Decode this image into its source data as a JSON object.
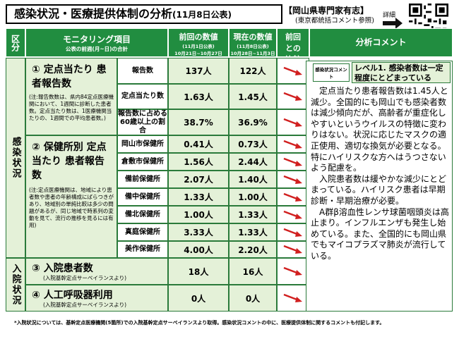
{
  "header": {
    "title": "感染状況・医療提供体制の分析",
    "title_date": "(11月8日公表)",
    "source_line1": "【岡山県専門家有志】",
    "source_line2": "(東京都統括コメント参照)",
    "detail_label": "詳細"
  },
  "table": {
    "col_headers": {
      "section": "区分",
      "item": "モニタリング項目",
      "item_sub": "公表の前週(月~日)の合計",
      "prev": "前回の数値",
      "prev_sub1": "(11月1日公表)",
      "prev_sub2": "10月21日~10月27日",
      "curr": "現在の数値",
      "curr_sub1": "(11月8日公表)",
      "curr_sub2": "10月28日~11月3日",
      "compare": "前回との比較",
      "comment": "分析コメント"
    },
    "sections": {
      "infection": "感染状況",
      "hospital": "入院状況"
    },
    "items": {
      "item1_title": "① 定点当たり 患者報告数",
      "item1_note": "(注:報告数数は、県内84定点医療機関において、1週間に診断した患者数。定点当たり数は、1医療機関当たりの、1週間での平均患者数。)",
      "item2_title": "② 保健所別 定点当たり 患者報告数",
      "item2_note": "(注:定点医療機関は、地域により患者数や患者の年齢構成にばらつきがあり、地域別の単純比較は多少の問題があるが、同じ地域で時系列の変動を見て、流行の推移を見るには有用)",
      "item3_title": "③ 入院患者数",
      "item3_note": "(入院基幹定点サーベイランスより)",
      "item4_title": "④ 人工呼吸器利用",
      "item4_note": "(入院基幹定点サーベイランスより)"
    },
    "rows": [
      {
        "label": "報告数",
        "prev": "137人",
        "curr": "122人"
      },
      {
        "label": "定点当たり数",
        "prev": "1.63人",
        "curr": "1.45人"
      },
      {
        "label": "報告数に占める60歳以上の割合",
        "prev": "38.7%",
        "curr": "36.9%"
      },
      {
        "label": "岡山市保健所",
        "prev": "0.41人",
        "curr": "0.73人"
      },
      {
        "label": "倉敷市保健所",
        "prev": "1.56人",
        "curr": "2.44人"
      },
      {
        "label": "備前保健所",
        "prev": "2.07人",
        "curr": "1.40人"
      },
      {
        "label": "備中保健所",
        "prev": "1.33人",
        "curr": "1.00人"
      },
      {
        "label": "備北保健所",
        "prev": "1.00人",
        "curr": "1.33人"
      },
      {
        "label": "真庭保健所",
        "prev": "3.33人",
        "curr": "1.33人"
      },
      {
        "label": "美作保健所",
        "prev": "4.00人",
        "curr": "2.20人"
      },
      {
        "label": "",
        "prev": "18人",
        "curr": "16人"
      },
      {
        "label": "",
        "prev": "0人",
        "curr": "0人"
      }
    ],
    "infection_level_label": "感染状況コメント",
    "infection_level": "レベル1. 感染者数は一定程度にとどまっている",
    "comment": "定点当たり患者報告数は1.45人と減少。全国的にも岡山でも感染者数は減少傾向だが、高齢者が重症化しやすいというウイルスの特徴に変わりはない。状況に応じたマスクの適正使用、適切な換気が必要となる。特にハイリスクな方へはうつさないよう配慮を。\n入院患者数は緩やかな減少にとどまっている。ハイリスク患者は早期診断・早期治療が必要。\nA群β溶血性レンサ球菌咽頭炎は高止まり。インフルエンザも発生し始めている。また、全国的にも岡山県でもマイコプラズマ肺炎が流行している。"
  },
  "footnote": "*入院状況については、基幹定点医療機関(5箇所)での入院基幹定点サーベイランスより取得。感染状況コメントの中に、医療提供体制に関するコメントも付記します。",
  "colors": {
    "header_green": "#218d40",
    "cell_green": "#e4f1d8",
    "arrow_red": "#d11f1f"
  },
  "icons": {
    "trend": "down-right-arrow",
    "qr": "qr-code"
  }
}
